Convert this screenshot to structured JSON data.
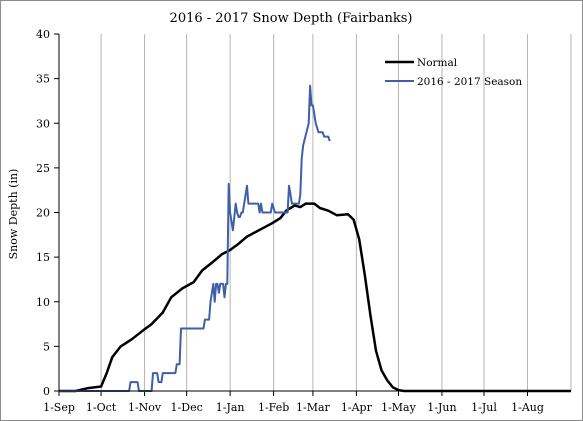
{
  "chart_data": {
    "type": "line",
    "title": "2016 - 2017 Snow Depth (Fairbanks)",
    "xlabel": "",
    "ylabel": "Snow Depth (in)",
    "xlim": [
      0,
      365
    ],
    "ylim": [
      0,
      40
    ],
    "yticks": [
      0,
      5,
      10,
      15,
      20,
      25,
      30,
      35,
      40
    ],
    "xticks": [
      {
        "day": 0,
        "label": "1-Sep"
      },
      {
        "day": 30,
        "label": "1-Oct"
      },
      {
        "day": 61,
        "label": "1-Nov"
      },
      {
        "day": 91,
        "label": "1-Dec"
      },
      {
        "day": 122,
        "label": "1-Jan"
      },
      {
        "day": 153,
        "label": "1-Feb"
      },
      {
        "day": 181,
        "label": "1-Mar"
      },
      {
        "day": 212,
        "label": "1-Apr"
      },
      {
        "day": 242,
        "label": "1-May"
      },
      {
        "day": 273,
        "label": "1-Jun"
      },
      {
        "day": 303,
        "label": "1-Jul"
      },
      {
        "day": 334,
        "label": "1-Aug"
      }
    ],
    "grid": "vertical",
    "legend_position": "top-right",
    "series": [
      {
        "name": "Normal",
        "color": "#000000",
        "x": [
          0,
          12,
          20,
          30,
          34,
          38,
          44,
          52,
          60,
          66,
          74,
          80,
          88,
          96,
          102,
          110,
          116,
          122,
          128,
          134,
          140,
          146,
          152,
          158,
          162,
          168,
          172,
          176,
          182,
          186,
          192,
          198,
          206,
          210,
          214,
          218,
          222,
          226,
          230,
          234,
          238,
          242,
          246,
          255,
          270,
          300,
          330,
          365
        ],
        "y": [
          0,
          0,
          0.3,
          0.5,
          2,
          3.8,
          5,
          5.8,
          6.8,
          7.5,
          8.8,
          10.5,
          11.5,
          12.2,
          13.5,
          14.5,
          15.3,
          15.8,
          16.5,
          17.3,
          17.8,
          18.3,
          18.8,
          19.4,
          20.2,
          20.8,
          20.6,
          21,
          21,
          20.5,
          20.2,
          19.7,
          19.8,
          19.2,
          17,
          13,
          8.5,
          4.5,
          2.3,
          1.2,
          0.4,
          0.1,
          0,
          0,
          0,
          0,
          0,
          0
        ]
      },
      {
        "name": "2016 - 2017 Season",
        "color": "#3f5fa9",
        "x": [
          0,
          50,
          51,
          56,
          57,
          66,
          67,
          70,
          71,
          73,
          74,
          83,
          84,
          86,
          87,
          94,
          95,
          103,
          104,
          107,
          108,
          109,
          110,
          111,
          112,
          113,
          114,
          115,
          116,
          117,
          118,
          119,
          120,
          121,
          122,
          123,
          124,
          126,
          127,
          128,
          129,
          130,
          131,
          134,
          135,
          137,
          138,
          142,
          143,
          144,
          145,
          151,
          152,
          154,
          155,
          163,
          164,
          165,
          166,
          167,
          168,
          171,
          172,
          173,
          174,
          178,
          179,
          180,
          181,
          182,
          183,
          184,
          185,
          186,
          188,
          189,
          192,
          193
        ],
        "y": [
          0,
          0,
          1,
          1,
          0,
          0,
          2,
          2,
          1,
          1,
          2,
          2,
          3,
          3,
          7,
          7,
          7,
          7,
          8,
          8,
          10,
          11,
          12,
          10,
          12,
          12,
          11,
          12,
          12,
          12,
          10.5,
          12,
          12,
          23.2,
          20,
          19,
          18,
          21,
          20,
          19.5,
          19.5,
          20,
          20,
          23,
          21,
          21,
          21,
          21,
          20,
          21,
          20,
          20,
          21,
          20,
          20,
          20,
          23,
          22,
          21,
          21,
          21,
          21,
          22,
          26,
          27.5,
          30,
          34.2,
          32,
          32,
          31,
          30,
          29.5,
          29,
          29,
          29,
          28.5,
          28.5,
          28
        ]
      }
    ]
  }
}
